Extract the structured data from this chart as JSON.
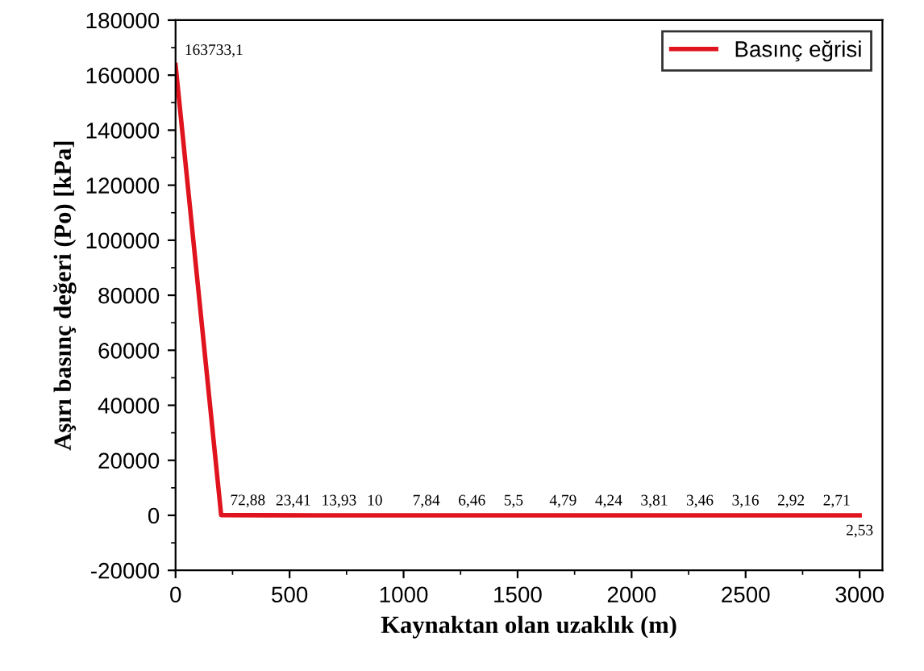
{
  "chart_data": {
    "type": "line",
    "xlabel": "Kaynaktan olan uzaklık (m)",
    "ylabel": "Aşırı basınç değeri (Po) [kPa]",
    "x": [
      0,
      200,
      400,
      600,
      800,
      1000,
      1200,
      1400,
      1600,
      1800,
      2000,
      2200,
      2400,
      2600,
      2800,
      3000
    ],
    "series": [
      {
        "name": "Basınç eğrisi",
        "color": "#e0141e",
        "values": [
          163733.1,
          72.88,
          23.41,
          13.93,
          10,
          7.84,
          6.46,
          5.5,
          4.79,
          4.24,
          3.81,
          3.46,
          3.16,
          2.92,
          2.71,
          2.53
        ],
        "value_labels": [
          "163733,1",
          "72,88",
          "23,41",
          "13,93",
          "10",
          "7,84",
          "6,46",
          "5,5",
          "4,79",
          "4,24",
          "3,81",
          "3,46",
          "3,16",
          "2,92",
          "2,71",
          "2,53"
        ]
      }
    ],
    "xlim": [
      0,
      3100
    ],
    "ylim": [
      -20000,
      180000
    ],
    "xticks": [
      0,
      500,
      1000,
      1500,
      2000,
      2500,
      3000
    ],
    "yticks": [
      -20000,
      0,
      20000,
      40000,
      60000,
      80000,
      100000,
      120000,
      140000,
      160000,
      180000
    ],
    "legend": "top right",
    "grid": false,
    "marker": "none",
    "line_style": "solid"
  }
}
